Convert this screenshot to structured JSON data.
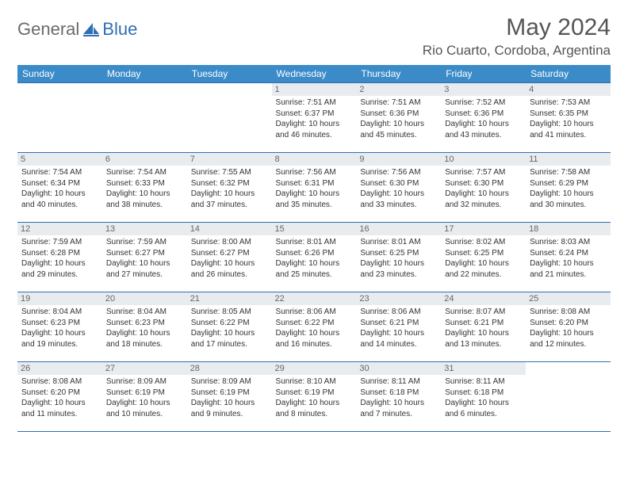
{
  "brand": {
    "text1": "General",
    "text2": "Blue"
  },
  "title": "May 2024",
  "location": "Rio Cuarto, Cordoba, Argentina",
  "colors": {
    "header_bg": "#3b8bc9",
    "header_text": "#ffffff",
    "border": "#2f6fb3",
    "daynum_bg": "#e9ecef",
    "daynum_text": "#666666",
    "body_text": "#333333",
    "title_text": "#555555",
    "page_bg": "#ffffff"
  },
  "fonts": {
    "title_size_pt": 22,
    "location_size_pt": 13,
    "header_size_pt": 9,
    "daynum_size_pt": 8,
    "info_size_pt": 7.5
  },
  "weekdays": [
    "Sunday",
    "Monday",
    "Tuesday",
    "Wednesday",
    "Thursday",
    "Friday",
    "Saturday"
  ],
  "weeks": [
    [
      null,
      null,
      null,
      {
        "day": "1",
        "sunrise": "7:51 AM",
        "sunset": "6:37 PM",
        "daylight": "10 hours and 46 minutes."
      },
      {
        "day": "2",
        "sunrise": "7:51 AM",
        "sunset": "6:36 PM",
        "daylight": "10 hours and 45 minutes."
      },
      {
        "day": "3",
        "sunrise": "7:52 AM",
        "sunset": "6:36 PM",
        "daylight": "10 hours and 43 minutes."
      },
      {
        "day": "4",
        "sunrise": "7:53 AM",
        "sunset": "6:35 PM",
        "daylight": "10 hours and 41 minutes."
      }
    ],
    [
      {
        "day": "5",
        "sunrise": "7:54 AM",
        "sunset": "6:34 PM",
        "daylight": "10 hours and 40 minutes."
      },
      {
        "day": "6",
        "sunrise": "7:54 AM",
        "sunset": "6:33 PM",
        "daylight": "10 hours and 38 minutes."
      },
      {
        "day": "7",
        "sunrise": "7:55 AM",
        "sunset": "6:32 PM",
        "daylight": "10 hours and 37 minutes."
      },
      {
        "day": "8",
        "sunrise": "7:56 AM",
        "sunset": "6:31 PM",
        "daylight": "10 hours and 35 minutes."
      },
      {
        "day": "9",
        "sunrise": "7:56 AM",
        "sunset": "6:30 PM",
        "daylight": "10 hours and 33 minutes."
      },
      {
        "day": "10",
        "sunrise": "7:57 AM",
        "sunset": "6:30 PM",
        "daylight": "10 hours and 32 minutes."
      },
      {
        "day": "11",
        "sunrise": "7:58 AM",
        "sunset": "6:29 PM",
        "daylight": "10 hours and 30 minutes."
      }
    ],
    [
      {
        "day": "12",
        "sunrise": "7:59 AM",
        "sunset": "6:28 PM",
        "daylight": "10 hours and 29 minutes."
      },
      {
        "day": "13",
        "sunrise": "7:59 AM",
        "sunset": "6:27 PM",
        "daylight": "10 hours and 27 minutes."
      },
      {
        "day": "14",
        "sunrise": "8:00 AM",
        "sunset": "6:27 PM",
        "daylight": "10 hours and 26 minutes."
      },
      {
        "day": "15",
        "sunrise": "8:01 AM",
        "sunset": "6:26 PM",
        "daylight": "10 hours and 25 minutes."
      },
      {
        "day": "16",
        "sunrise": "8:01 AM",
        "sunset": "6:25 PM",
        "daylight": "10 hours and 23 minutes."
      },
      {
        "day": "17",
        "sunrise": "8:02 AM",
        "sunset": "6:25 PM",
        "daylight": "10 hours and 22 minutes."
      },
      {
        "day": "18",
        "sunrise": "8:03 AM",
        "sunset": "6:24 PM",
        "daylight": "10 hours and 21 minutes."
      }
    ],
    [
      {
        "day": "19",
        "sunrise": "8:04 AM",
        "sunset": "6:23 PM",
        "daylight": "10 hours and 19 minutes."
      },
      {
        "day": "20",
        "sunrise": "8:04 AM",
        "sunset": "6:23 PM",
        "daylight": "10 hours and 18 minutes."
      },
      {
        "day": "21",
        "sunrise": "8:05 AM",
        "sunset": "6:22 PM",
        "daylight": "10 hours and 17 minutes."
      },
      {
        "day": "22",
        "sunrise": "8:06 AM",
        "sunset": "6:22 PM",
        "daylight": "10 hours and 16 minutes."
      },
      {
        "day": "23",
        "sunrise": "8:06 AM",
        "sunset": "6:21 PM",
        "daylight": "10 hours and 14 minutes."
      },
      {
        "day": "24",
        "sunrise": "8:07 AM",
        "sunset": "6:21 PM",
        "daylight": "10 hours and 13 minutes."
      },
      {
        "day": "25",
        "sunrise": "8:08 AM",
        "sunset": "6:20 PM",
        "daylight": "10 hours and 12 minutes."
      }
    ],
    [
      {
        "day": "26",
        "sunrise": "8:08 AM",
        "sunset": "6:20 PM",
        "daylight": "10 hours and 11 minutes."
      },
      {
        "day": "27",
        "sunrise": "8:09 AM",
        "sunset": "6:19 PM",
        "daylight": "10 hours and 10 minutes."
      },
      {
        "day": "28",
        "sunrise": "8:09 AM",
        "sunset": "6:19 PM",
        "daylight": "10 hours and 9 minutes."
      },
      {
        "day": "29",
        "sunrise": "8:10 AM",
        "sunset": "6:19 PM",
        "daylight": "10 hours and 8 minutes."
      },
      {
        "day": "30",
        "sunrise": "8:11 AM",
        "sunset": "6:18 PM",
        "daylight": "10 hours and 7 minutes."
      },
      {
        "day": "31",
        "sunrise": "8:11 AM",
        "sunset": "6:18 PM",
        "daylight": "10 hours and 6 minutes."
      },
      null
    ]
  ]
}
